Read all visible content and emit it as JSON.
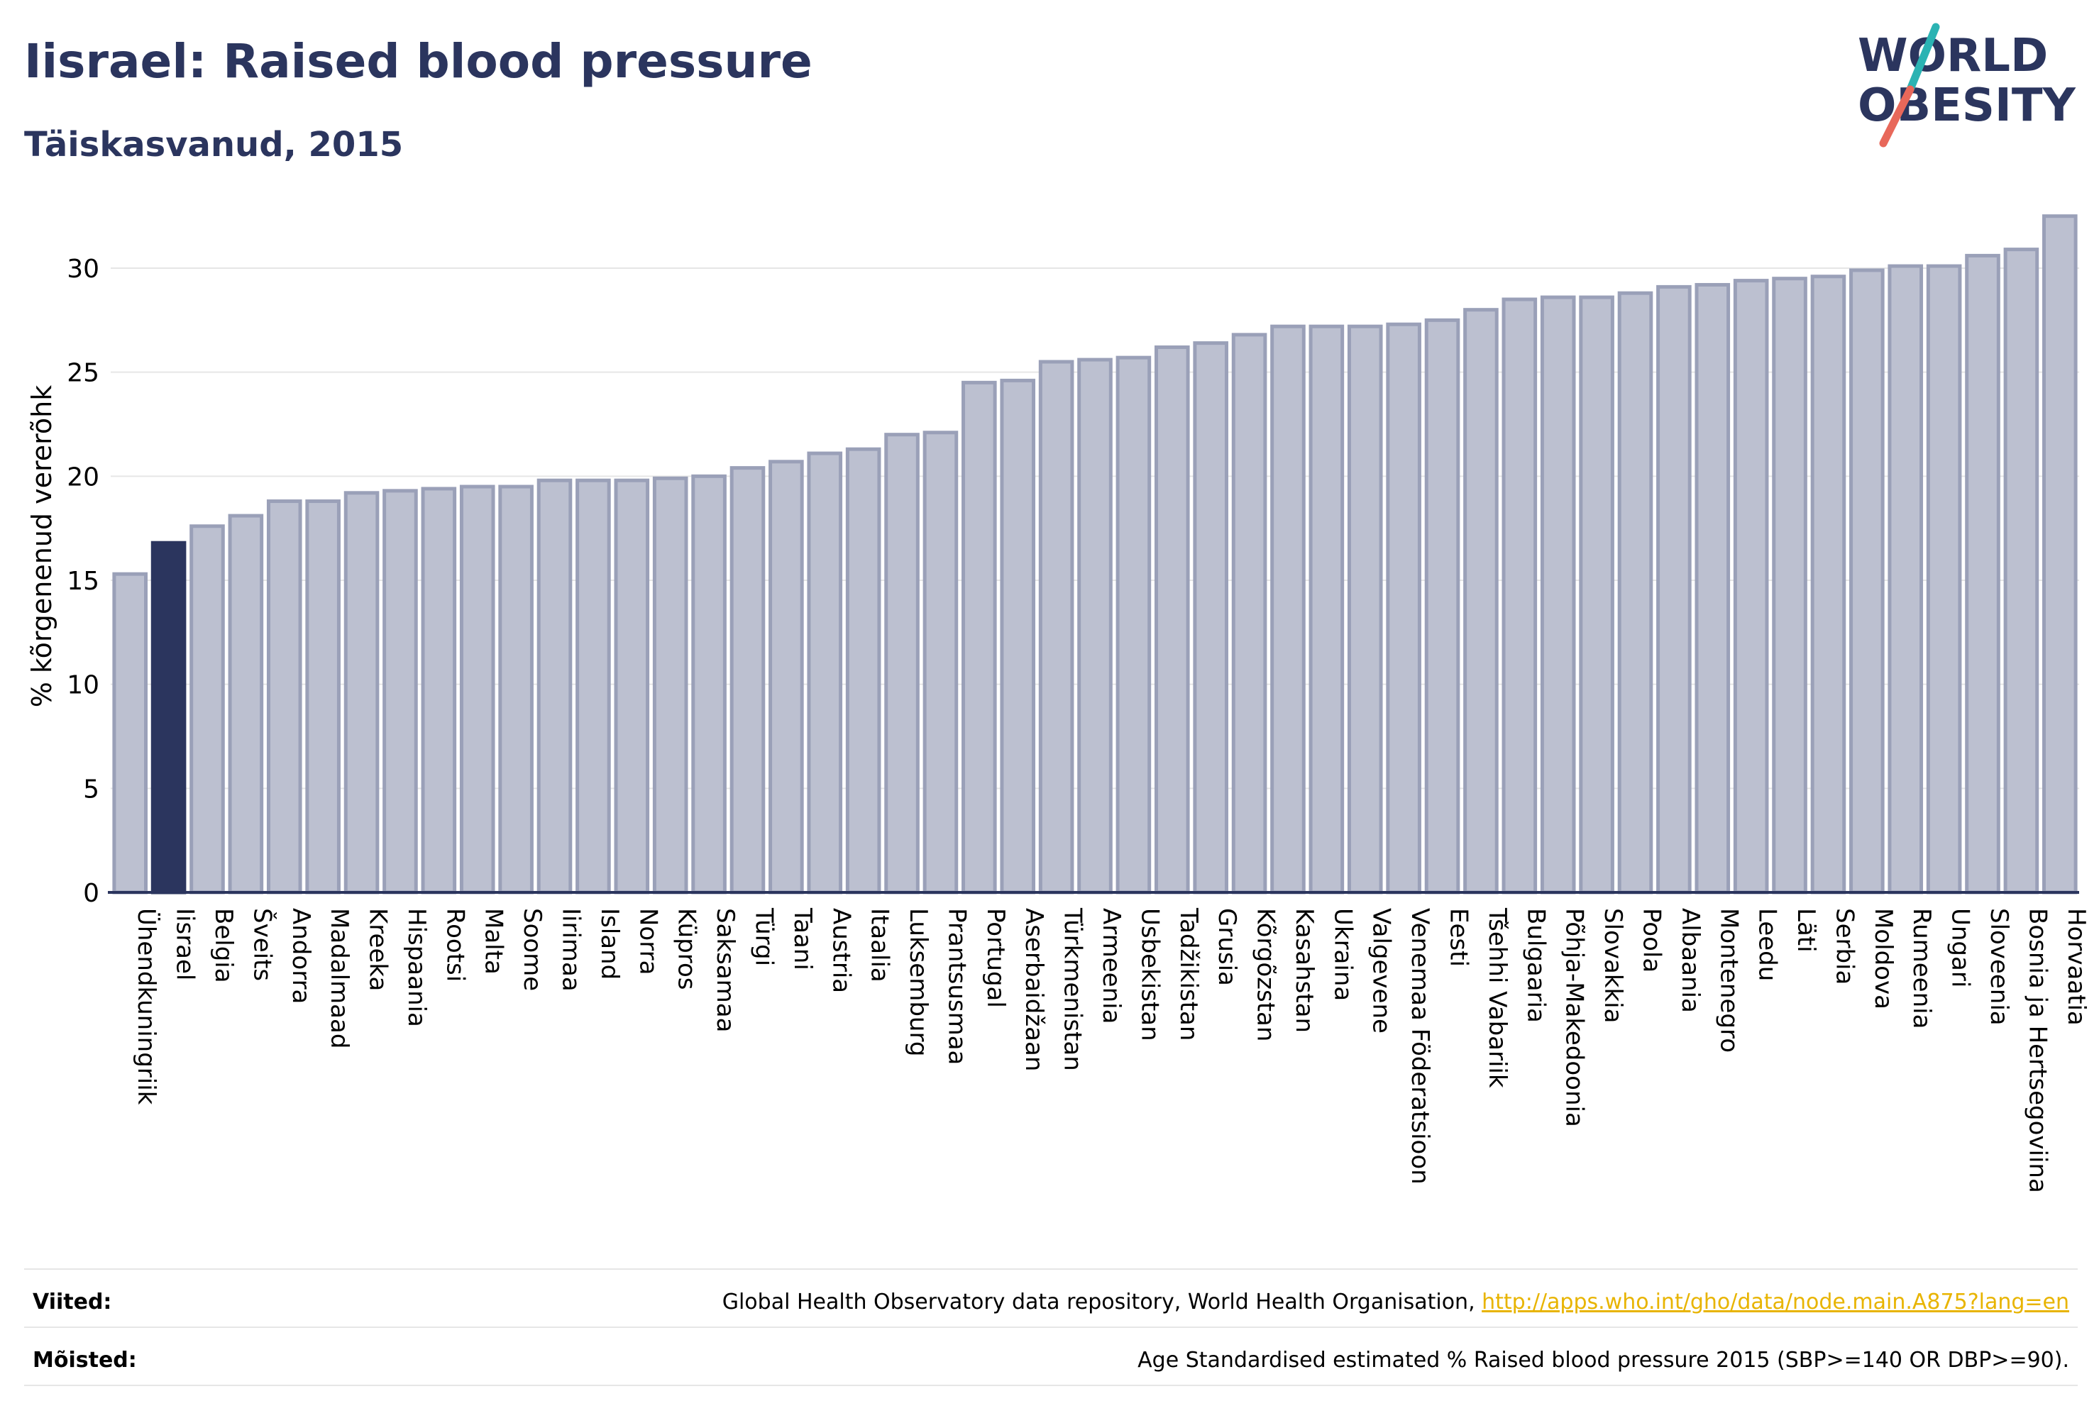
{
  "header": {
    "title": "Iisrael: Raised blood pressure",
    "subtitle": "Täiskasvanud, 2015"
  },
  "logo": {
    "line1": "WORLD",
    "line2": "OBESITY",
    "color_text": "#2b355e",
    "color_slash_top": "#2bb3b3",
    "color_slash_bottom": "#e8685a"
  },
  "colors": {
    "bar": "#bcc0d0",
    "bar_stroke": "#9aa0b8",
    "highlight": "#2b355e",
    "grid": "#e6e6e6",
    "axis": "#2b355e"
  },
  "chart_data": {
    "type": "bar",
    "ylabel": "% kõrgenenud vererõhk",
    "ylim": [
      0,
      33
    ],
    "yticks": [
      0,
      5,
      10,
      15,
      20,
      25,
      30
    ],
    "grid": true,
    "highlight": "Iisrael",
    "categories": [
      "Ühendkuningriik",
      "Iisrael",
      "Belgia",
      "Šveits",
      "Andorra",
      "Madalmaad",
      "Kreeka",
      "Hispaania",
      "Rootsi",
      "Malta",
      "Soome",
      "Iirimaa",
      "Island",
      "Norra",
      "Küpros",
      "Saksamaa",
      "Türgi",
      "Taani",
      "Austria",
      "Itaalia",
      "Luksemburg",
      "Prantsusmaa",
      "Portugal",
      "Aserbaidžaan",
      "Türkmenistan",
      "Armeenia",
      "Usbekistan",
      "Tadžikistan",
      "Grusia",
      "Kõrgõzstan",
      "Kasahstan",
      "Ukraina",
      "Valgevene",
      "Venemaa Föderatsioon",
      "Eesti",
      "Tšehhi Vabariik",
      "Bulgaaria",
      "Põhja-Makedoonia",
      "Slovakkia",
      "Poola",
      "Albaania",
      "Montenegro",
      "Leedu",
      "Läti",
      "Serbia",
      "Moldova",
      "Rumeenia",
      "Ungari",
      "Sloveenia",
      "Bosnia ja Hertsegoviina",
      "Horvaatia"
    ],
    "values": [
      15.3,
      16.8,
      17.6,
      18.1,
      18.8,
      18.8,
      19.2,
      19.3,
      19.4,
      19.5,
      19.5,
      19.8,
      19.8,
      19.8,
      19.9,
      20.0,
      20.4,
      20.7,
      21.1,
      21.3,
      22.0,
      22.1,
      24.5,
      24.6,
      25.5,
      25.6,
      25.7,
      26.2,
      26.4,
      26.8,
      27.2,
      27.2,
      27.2,
      27.3,
      27.5,
      28.0,
      28.5,
      28.6,
      28.6,
      28.8,
      29.1,
      29.2,
      29.4,
      29.5,
      29.6,
      29.9,
      30.1,
      30.1,
      30.6,
      30.9,
      32.5
    ]
  },
  "footer": {
    "sources_label": "Viited:",
    "sources_text": "Global Health Observatory data repository, World Health Organisation, ",
    "sources_link": "http://apps.who.int/gho/data/node.main.A875?lang=en",
    "definitions_label": "Mõisted:",
    "definitions_text": "Age Standardised estimated % Raised blood pressure 2015 (SBP>=140 OR DBP>=90)."
  }
}
